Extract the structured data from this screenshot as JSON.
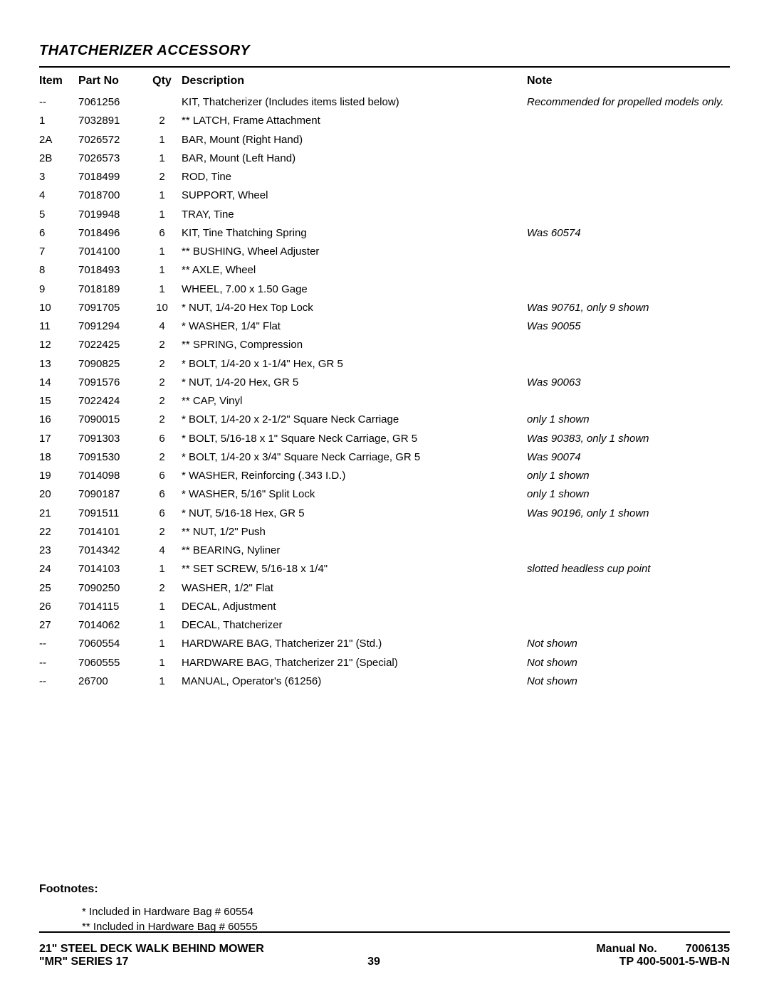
{
  "section_title": "THATCHERIZER ACCESSORY",
  "columns": {
    "item": "Item",
    "part": "Part No",
    "qty": "Qty",
    "desc": "Description",
    "note": "Note"
  },
  "rows": [
    {
      "item": "--",
      "part": "7061256",
      "qty": "",
      "desc": "KIT, Thatcherizer (Includes items listed below)",
      "note": "Recommended for propelled models only."
    },
    {
      "item": "1",
      "part": "7032891",
      "qty": "2",
      "desc": "** LATCH, Frame Attachment",
      "note": ""
    },
    {
      "item": "2A",
      "part": "7026572",
      "qty": "1",
      "desc": "BAR, Mount (Right Hand)",
      "note": ""
    },
    {
      "item": "2B",
      "part": "7026573",
      "qty": "1",
      "desc": "BAR, Mount (Left Hand)",
      "note": ""
    },
    {
      "item": "3",
      "part": "7018499",
      "qty": "2",
      "desc": "ROD, Tine",
      "note": ""
    },
    {
      "item": "4",
      "part": "7018700",
      "qty": "1",
      "desc": "SUPPORT, Wheel",
      "note": ""
    },
    {
      "item": "5",
      "part": "7019948",
      "qty": "1",
      "desc": "TRAY, Tine",
      "note": ""
    },
    {
      "item": "6",
      "part": "7018496",
      "qty": "6",
      "desc": "KIT, Tine Thatching Spring",
      "note": "Was 60574"
    },
    {
      "item": "7",
      "part": "7014100",
      "qty": "1",
      "desc": "** BUSHING, Wheel Adjuster",
      "note": ""
    },
    {
      "item": "8",
      "part": "7018493",
      "qty": "1",
      "desc": "** AXLE, Wheel",
      "note": ""
    },
    {
      "item": "9",
      "part": "7018189",
      "qty": "1",
      "desc": "WHEEL, 7.00 x 1.50 Gage",
      "note": ""
    },
    {
      "item": "10",
      "part": "7091705",
      "qty": "10",
      "desc": "* NUT, 1/4-20 Hex Top Lock",
      "note": "Was 90761, only 9 shown"
    },
    {
      "item": "11",
      "part": "7091294",
      "qty": "4",
      "desc": "* WASHER, 1/4\" Flat",
      "note": "Was 90055"
    },
    {
      "item": "12",
      "part": "7022425",
      "qty": "2",
      "desc": "** SPRING, Compression",
      "note": ""
    },
    {
      "item": "13",
      "part": "7090825",
      "qty": "2",
      "desc": "* BOLT, 1/4-20 x 1-1/4\" Hex, GR 5",
      "note": ""
    },
    {
      "item": "14",
      "part": "7091576",
      "qty": "2",
      "desc": "* NUT, 1/4-20 Hex, GR 5",
      "note": "Was 90063"
    },
    {
      "item": "15",
      "part": "7022424",
      "qty": "2",
      "desc": "** CAP, Vinyl",
      "note": ""
    },
    {
      "item": "16",
      "part": "7090015",
      "qty": "2",
      "desc": "* BOLT, 1/4-20 x 2-1/2\" Square Neck Carriage",
      "note": "only 1 shown"
    },
    {
      "item": "17",
      "part": "7091303",
      "qty": "6",
      "desc": "* BOLT, 5/16-18 x 1\" Square Neck Carriage, GR 5",
      "note": "Was 90383, only 1 shown"
    },
    {
      "item": "18",
      "part": "7091530",
      "qty": "2",
      "desc": "* BOLT, 1/4-20 x 3/4\" Square Neck Carriage, GR 5",
      "note": "Was 90074"
    },
    {
      "item": "19",
      "part": "7014098",
      "qty": "6",
      "desc": "* WASHER, Reinforcing (.343 I.D.)",
      "note": "only 1 shown"
    },
    {
      "item": "20",
      "part": "7090187",
      "qty": "6",
      "desc": "* WASHER, 5/16\" Split Lock",
      "note": "only 1 shown"
    },
    {
      "item": "21",
      "part": "7091511",
      "qty": "6",
      "desc": "* NUT, 5/16-18 Hex, GR 5",
      "note": "Was 90196, only 1 shown"
    },
    {
      "item": "22",
      "part": "7014101",
      "qty": "2",
      "desc": "** NUT, 1/2\" Push",
      "note": ""
    },
    {
      "item": "23",
      "part": "7014342",
      "qty": "4",
      "desc": "** BEARING, Nyliner",
      "note": ""
    },
    {
      "item": "24",
      "part": "7014103",
      "qty": "1",
      "desc": "** SET SCREW, 5/16-18 x 1/4\"",
      "note": "slotted headless cup point"
    },
    {
      "item": "25",
      "part": "7090250",
      "qty": "2",
      "desc": "WASHER, 1/2\" Flat",
      "note": ""
    },
    {
      "item": "26",
      "part": "7014115",
      "qty": "1",
      "desc": "DECAL, Adjustment",
      "note": ""
    },
    {
      "item": "27",
      "part": "7014062",
      "qty": "1",
      "desc": "DECAL, Thatcherizer",
      "note": ""
    },
    {
      "item": "--",
      "part": "7060554",
      "qty": "1",
      "desc": "HARDWARE BAG, Thatcherizer 21\" (Std.)",
      "note": "Not shown"
    },
    {
      "item": "--",
      "part": "7060555",
      "qty": "1",
      "desc": "HARDWARE BAG, Thatcherizer 21\" (Special)",
      "note": "Not shown"
    },
    {
      "item": "--",
      "part": "26700",
      "qty": "1",
      "desc": "MANUAL, Operator's (61256)",
      "note": "Not shown"
    }
  ],
  "footnotes": {
    "title": "Footnotes:",
    "lines": [
      "* Included in Hardware Bag # 60554",
      "** Included in Hardware Bag # 60555"
    ]
  },
  "footer": {
    "line1_left": "21\" STEEL DECK WALK BEHIND MOWER",
    "line1_right_label": "Manual No.",
    "line1_right_value": "7006135",
    "line2_left": "\"MR\" SERIES 17",
    "page_number": "39",
    "line2_right": "TP 400-5001-5-WB-N"
  }
}
